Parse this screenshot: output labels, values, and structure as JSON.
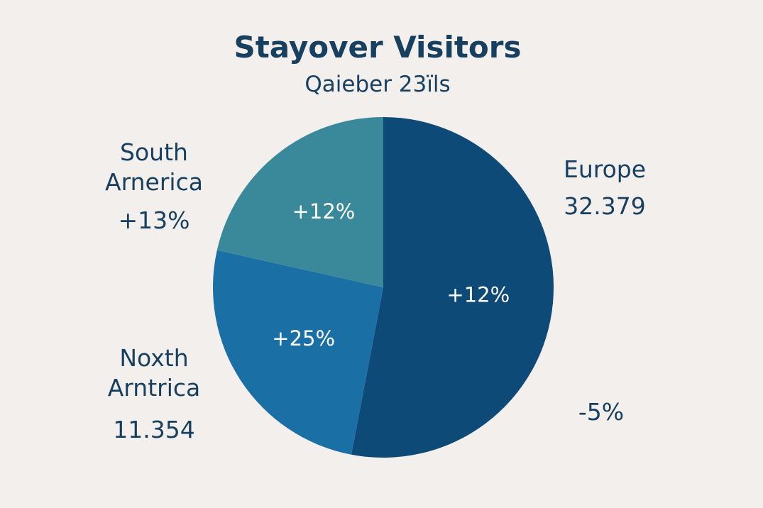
{
  "chart_data": {
    "type": "pie",
    "title": "Stayover Visitors",
    "subtitle": "Qaieber 23ïls",
    "categories": [
      "Europe",
      "Noxth Arntrica",
      "South Arnerica"
    ],
    "values": [
      53,
      25.5,
      21.5
    ],
    "colors": [
      "#0d4a78",
      "#1a6fa5",
      "#3a899a"
    ],
    "inner_labels": [
      "+12%",
      "+25%",
      "+12%"
    ],
    "outer_labels": [
      "32.379",
      "11.354",
      "+13%"
    ],
    "note": "-5%"
  }
}
